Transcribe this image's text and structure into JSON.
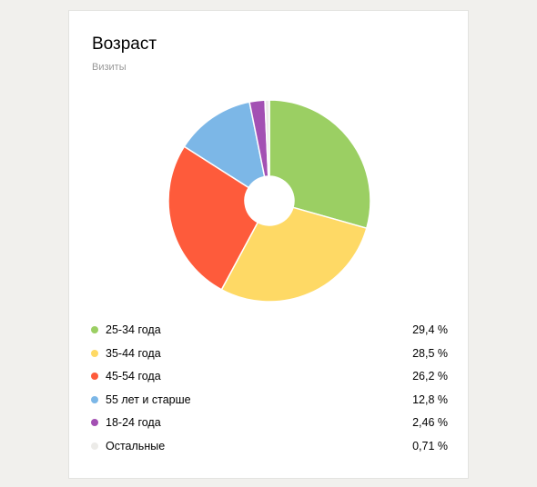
{
  "card": {
    "title": "Возраст",
    "subtitle": "Визиты"
  },
  "chart_data": {
    "type": "pie",
    "title": "Возраст",
    "subtitle": "Визиты",
    "donut": true,
    "categories": [
      "25-34 года",
      "35-44 года",
      "45-54 года",
      "55 лет и старше",
      "18-24 года",
      "Остальные"
    ],
    "values": [
      29.4,
      28.5,
      26.2,
      12.8,
      2.46,
      0.71
    ],
    "value_labels": [
      "29,4 %",
      "28,5 %",
      "26,2 %",
      "12,8 %",
      "2,46 %",
      "0,71 %"
    ],
    "colors": [
      "#9bcf63",
      "#fed965",
      "#fe5b3b",
      "#7cb7e7",
      "#a350b3",
      "#ecebe8"
    ],
    "legend": "bottom"
  }
}
